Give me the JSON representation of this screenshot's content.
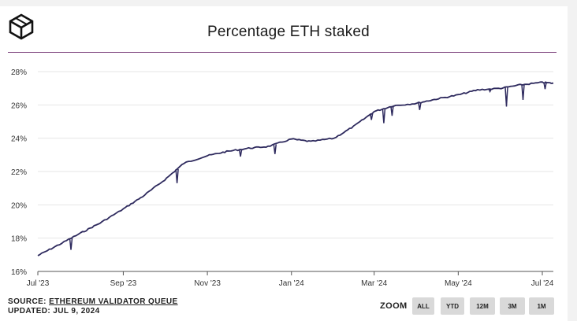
{
  "header": {
    "title": "Percentage ETH staked",
    "logo_icon": "cube-logo-icon"
  },
  "footer": {
    "source_prefix": "SOURCE: ",
    "source_link": "ETHEREUM VALIDATOR QUEUE",
    "updated": "UPDATED: JUL 9, 2024"
  },
  "zoom": {
    "label": "ZOOM",
    "buttons": [
      "ALL",
      "YTD",
      "12M",
      "3M",
      "1M"
    ]
  },
  "colors": {
    "line": "#2e2a5e",
    "title_rule": "#7a3e7a",
    "grid": "#e6e6e6",
    "button_bg": "#d9d9d9"
  },
  "chart_data": {
    "type": "line",
    "title": "Percentage ETH staked",
    "xlabel": "",
    "ylabel": "",
    "grid": true,
    "legend": "none",
    "x_range": [
      "2023-07-01",
      "2024-07-09"
    ],
    "ylim": [
      16,
      28
    ],
    "y_ticks": [
      16,
      18,
      20,
      22,
      24,
      26,
      28
    ],
    "y_tick_labels": [
      "16%",
      "18%",
      "20%",
      "22%",
      "24%",
      "26%",
      "28%"
    ],
    "x_ticks": [
      "2023-07-01",
      "2023-09-01",
      "2023-11-01",
      "2024-01-01",
      "2024-03-01",
      "2024-05-01",
      "2024-07-01"
    ],
    "x_tick_labels": [
      "Jul '23",
      "Sep '23",
      "Nov '23",
      "Jan '24",
      "Mar '24",
      "May '24",
      "Jul '24"
    ],
    "series": [
      {
        "points": [
          [
            "2023-07-01",
            16.95
          ],
          [
            "2023-07-15",
            17.55
          ],
          [
            "2023-08-01",
            18.3
          ],
          [
            "2023-08-15",
            18.9
          ],
          [
            "2023-09-01",
            19.75
          ],
          [
            "2023-09-15",
            20.5
          ],
          [
            "2023-10-01",
            21.5
          ],
          [
            "2023-10-15",
            22.5
          ],
          [
            "2023-11-01",
            22.95
          ],
          [
            "2023-11-15",
            23.2
          ],
          [
            "2023-12-01",
            23.4
          ],
          [
            "2023-12-15",
            23.5
          ],
          [
            "2024-01-01",
            23.95
          ],
          [
            "2024-01-15",
            23.8
          ],
          [
            "2024-02-01",
            24.0
          ],
          [
            "2024-02-15",
            24.7
          ],
          [
            "2024-03-01",
            25.6
          ],
          [
            "2024-03-15",
            25.95
          ],
          [
            "2024-04-01",
            26.1
          ],
          [
            "2024-04-15",
            26.35
          ],
          [
            "2024-05-01",
            26.6
          ],
          [
            "2024-05-15",
            26.9
          ],
          [
            "2024-06-01",
            27.0
          ],
          [
            "2024-06-15",
            27.2
          ],
          [
            "2024-07-01",
            27.35
          ],
          [
            "2024-07-09",
            27.3
          ]
        ],
        "dips": [
          [
            "2023-07-25",
            17.3
          ],
          [
            "2023-10-10",
            21.3
          ],
          [
            "2023-11-25",
            22.9
          ],
          [
            "2023-12-20",
            23.05
          ],
          [
            "2024-02-28",
            25.1
          ],
          [
            "2024-03-08",
            24.9
          ],
          [
            "2024-03-14",
            25.35
          ],
          [
            "2024-04-03",
            25.7
          ],
          [
            "2024-05-24",
            26.8
          ],
          [
            "2024-06-05",
            25.9
          ],
          [
            "2024-06-17",
            26.3
          ],
          [
            "2024-07-03",
            26.95
          ]
        ]
      }
    ]
  }
}
